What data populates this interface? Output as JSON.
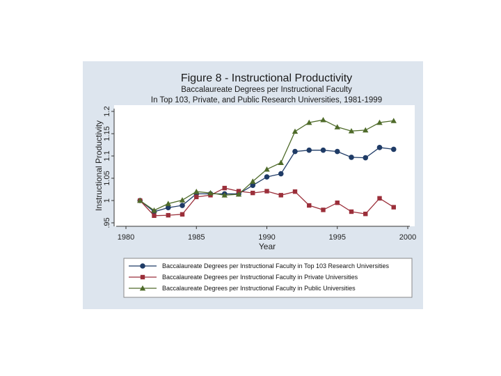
{
  "chart_data": {
    "type": "line",
    "title": "Figure 8 - Instructional Productivity",
    "subtitle_lines": [
      "Baccalaureate Degrees per Instructional Faculty",
      "In Top 103, Private, and Public Research Universities, 1981-1999"
    ],
    "xlabel": "Year",
    "ylabel": "Instructional Productivity",
    "xlim": [
      1979,
      2000
    ],
    "ylim": [
      0.95,
      1.2
    ],
    "xticks": [
      1980,
      1985,
      1990,
      1995,
      2000
    ],
    "xtick_labels": [
      "1980",
      "1985",
      "1990",
      "1995",
      "2000"
    ],
    "yticks": [
      0.95,
      1,
      1.05,
      1.1,
      1.15,
      1.2
    ],
    "ytick_labels": [
      ".95",
      "1",
      "1.05",
      "1.1",
      "1.15",
      "1.2"
    ],
    "x": [
      1981,
      1982,
      1983,
      1984,
      1985,
      1986,
      1987,
      1988,
      1989,
      1990,
      1991,
      1992,
      1993,
      1994,
      1995,
      1996,
      1997,
      1998,
      1999
    ],
    "series": [
      {
        "name": "Baccalaureate Degrees per Instructional Faculty in Top 103 Research Universities",
        "color": "#1f3b66",
        "marker": "circle",
        "values": [
          1.0,
          0.975,
          0.984,
          0.989,
          1.015,
          1.015,
          1.015,
          1.015,
          1.034,
          1.053,
          1.06,
          1.11,
          1.113,
          1.113,
          1.11,
          1.097,
          1.096,
          1.119,
          1.115
        ]
      },
      {
        "name": "Baccalaureate Degrees per Instructional Faculty in Private Universities",
        "color": "#9b2f3a",
        "marker": "square",
        "values": [
          1.0,
          0.966,
          0.967,
          0.969,
          1.008,
          1.012,
          1.028,
          1.021,
          1.017,
          1.021,
          1.012,
          1.02,
          0.989,
          0.979,
          0.995,
          0.975,
          0.97,
          1.005,
          0.985
        ]
      },
      {
        "name": "Baccalaureate Degrees per Instructional Faculty in Public Universities",
        "color": "#4f6b2a",
        "marker": "triangle",
        "values": [
          1.0,
          0.978,
          0.993,
          1.001,
          1.02,
          1.017,
          1.012,
          1.014,
          1.043,
          1.07,
          1.085,
          1.155,
          1.175,
          1.181,
          1.165,
          1.156,
          1.158,
          1.175,
          1.179
        ]
      }
    ]
  }
}
